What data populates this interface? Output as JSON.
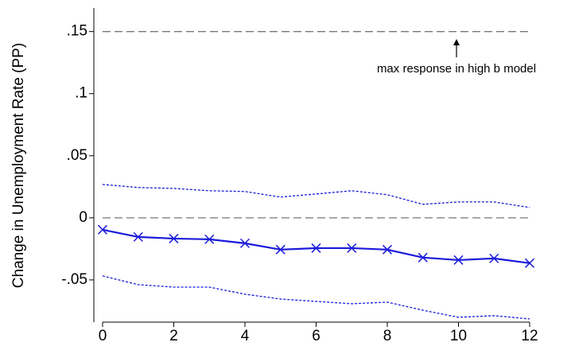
{
  "chart_data": {
    "type": "line",
    "ylabel": "Change in Unemployment Rate (PP)",
    "x": [
      0,
      1,
      2,
      3,
      4,
      5,
      6,
      7,
      8,
      9,
      10,
      11,
      12
    ],
    "series": [
      {
        "color": "#1a1adb",
        "line_style": "solid",
        "marker": "x",
        "values": [
          -0.0096,
          -0.0154,
          -0.0167,
          -0.0173,
          -0.0205,
          -0.0256,
          -0.0244,
          -0.0244,
          -0.0256,
          -0.032,
          -0.034,
          -0.0327,
          -0.0365
        ]
      },
      {
        "color": "#1a1adb",
        "line_style": "dashed",
        "values": [
          0.0269,
          0.0244,
          0.0237,
          0.0218,
          0.0212,
          0.0167,
          0.0192,
          0.0218,
          0.0186,
          0.0109,
          0.0128,
          0.0128,
          0.0083
        ]
      },
      {
        "color": "#1a1adb",
        "line_style": "dashed",
        "values": [
          -0.0468,
          -0.0538,
          -0.0558,
          -0.0558,
          -0.0615,
          -0.0654,
          -0.0673,
          -0.0692,
          -0.0679,
          -0.0744,
          -0.0801,
          -0.0788,
          -0.0814
        ]
      }
    ],
    "reference_lines": [
      0.15,
      0
    ],
    "reference_color": "#777777",
    "annotation": "max response in high b model",
    "xlim": [
      0,
      12
    ],
    "xticks": [
      0,
      2,
      4,
      6,
      8,
      10,
      12
    ],
    "ylim": [
      -0.084,
      0.169
    ],
    "yticks": [
      {
        "value": -0.05,
        "label": "-.05"
      },
      0,
      {
        "value": 0.05,
        "label": ".05"
      },
      {
        "value": 0.1,
        "label": ".1"
      },
      {
        "value": 0.15,
        "label": ".15"
      }
    ]
  }
}
